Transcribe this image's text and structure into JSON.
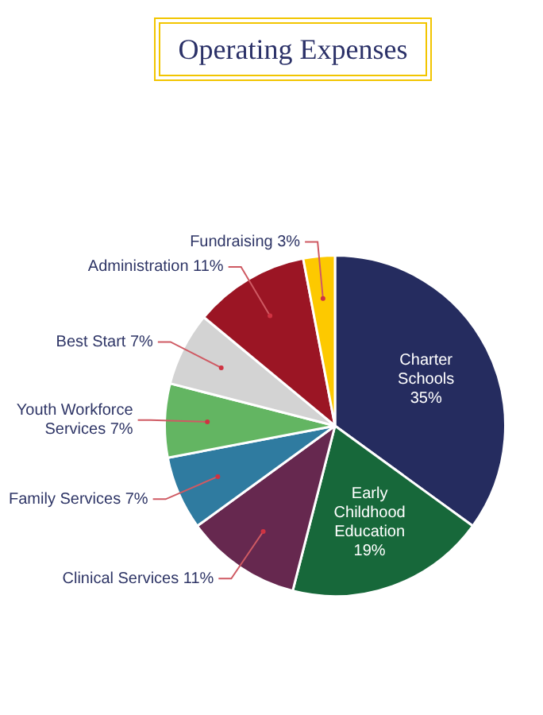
{
  "chart_data": {
    "type": "pie",
    "title": "Operating Expenses",
    "categories": [
      "Charter Schools",
      "Early Childhood Education",
      "Clinical Services",
      "Family Services",
      "Youth Workforce Services",
      "Best Start",
      "Administration",
      "Fundraising"
    ],
    "values": [
      35,
      19,
      11,
      7,
      7,
      7,
      11,
      3
    ],
    "value_labels": [
      "35%",
      "19%",
      "11%",
      "7%",
      "7%",
      "7%",
      "11%",
      "3%"
    ],
    "colors": [
      "#252c5f",
      "#17683a",
      "#66284f",
      "#2f7ba0",
      "#63b562",
      "#d3d3d3",
      "#9b1524",
      "#fdc900"
    ],
    "legend": false
  }
}
